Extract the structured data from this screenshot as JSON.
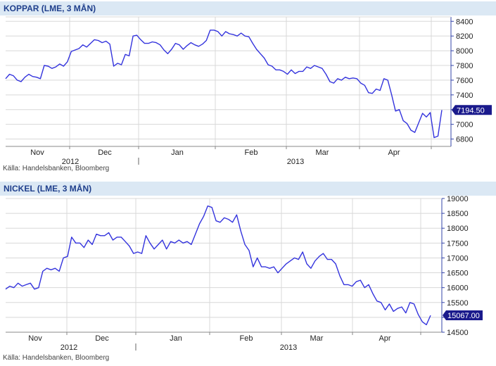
{
  "chart_data": [
    {
      "type": "line",
      "title": "KOPPAR (LME, 3 MÅN)",
      "source": "Källa: Handelsbanken, Bloomberg",
      "ylim": [
        6700,
        8460
      ],
      "yticks": [
        "8400",
        "8200",
        "8000",
        "7800",
        "7600",
        "7400",
        "7200",
        "7000",
        "6800"
      ],
      "last_value_label": "7194.50",
      "months": [
        "Nov",
        "Dec",
        "Jan",
        "Feb",
        "Mar",
        "Apr"
      ],
      "years": [
        "2012",
        "2013"
      ],
      "line_color": "#3333dd",
      "series": [
        {
          "values": [
            7620,
            7680,
            7660,
            7600,
            7580,
            7640,
            7680,
            7650,
            7640,
            7620,
            7800,
            7790,
            7760,
            7780,
            7820,
            7790,
            7850,
            7990,
            8010,
            8030,
            8080,
            8050,
            8100,
            8150,
            8140,
            8110,
            8130,
            8090,
            7790,
            7830,
            7810,
            7950,
            7930,
            8200,
            8210,
            8150,
            8100,
            8100,
            8120,
            8110,
            8080,
            8010,
            7960,
            8020,
            8100,
            8080,
            8020,
            8070,
            8110,
            8080,
            8060,
            8090,
            8140,
            8280,
            8280,
            8260,
            8200,
            8260,
            8230,
            8220,
            8200,
            8240,
            8200,
            8190,
            8100,
            8020,
            7960,
            7900,
            7810,
            7790,
            7740,
            7740,
            7720,
            7680,
            7740,
            7690,
            7720,
            7720,
            7780,
            7760,
            7800,
            7780,
            7760,
            7680,
            7580,
            7560,
            7620,
            7600,
            7640,
            7620,
            7630,
            7620,
            7560,
            7530,
            7430,
            7420,
            7480,
            7460,
            7620,
            7600,
            7400,
            7180,
            7200,
            7050,
            7010,
            6920,
            6890,
            7020,
            7150,
            7100,
            7160,
            6820,
            6840,
            7194.5
          ]
        }
      ]
    },
    {
      "type": "line",
      "title": "NICKEL (LME, 3 MÅN)",
      "source": "Källa: Handelsbanken, Bloomberg",
      "ylim": [
        14500,
        19000
      ],
      "yticks": [
        "19000",
        "18500",
        "18000",
        "17500",
        "17000",
        "16500",
        "16000",
        "15500",
        "15000",
        "14500"
      ],
      "last_value_label": "15067.00",
      "months": [
        "Nov",
        "Dec",
        "Jan",
        "Feb",
        "Mar",
        "Apr"
      ],
      "years": [
        "2012",
        "2013"
      ],
      "line_color": "#3333dd",
      "series": [
        {
          "values": [
            15950,
            16050,
            16000,
            16150,
            16050,
            16100,
            16150,
            15950,
            16000,
            16550,
            16650,
            16600,
            16650,
            16550,
            17000,
            17050,
            17700,
            17500,
            17500,
            17350,
            17600,
            17450,
            17800,
            17750,
            17750,
            17850,
            17600,
            17700,
            17700,
            17550,
            17400,
            17150,
            17200,
            17150,
            17750,
            17500,
            17300,
            17450,
            17600,
            17300,
            17550,
            17500,
            17600,
            17500,
            17550,
            17450,
            17800,
            18150,
            18400,
            18750,
            18700,
            18250,
            18200,
            18350,
            18300,
            18200,
            18450,
            17900,
            17450,
            17250,
            16700,
            17000,
            16700,
            16700,
            16650,
            16700,
            16500,
            16650,
            16800,
            16900,
            17000,
            16950,
            17200,
            16800,
            16650,
            16900,
            17050,
            17150,
            16950,
            16950,
            16800,
            16400,
            16100,
            16100,
            16050,
            16200,
            16250,
            16000,
            16100,
            15800,
            15550,
            15500,
            15250,
            15450,
            15200,
            15300,
            15350,
            15150,
            15500,
            15450,
            15100,
            14850,
            14750,
            15067
          ]
        }
      ]
    }
  ]
}
